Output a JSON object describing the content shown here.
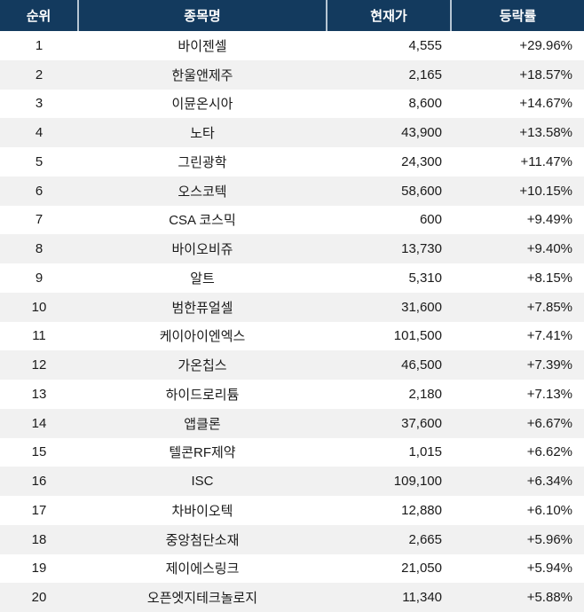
{
  "colors": {
    "header_bg": "#133a5e",
    "header_text": "#ffffff",
    "header_divider": "#b6c5d3",
    "row_bg": "#ffffff",
    "row_alt_bg": "#f1f1f1",
    "body_text": "#1a1a1a"
  },
  "table": {
    "columns": [
      {
        "key": "rank",
        "label": "순위"
      },
      {
        "key": "name",
        "label": "종목명"
      },
      {
        "key": "price",
        "label": "현재가"
      },
      {
        "key": "change",
        "label": "등락률"
      }
    ],
    "rows": [
      {
        "rank": "1",
        "name": "바이젠셀",
        "price": "4,555",
        "change": "+29.96%"
      },
      {
        "rank": "2",
        "name": "한울앤제주",
        "price": "2,165",
        "change": "+18.57%"
      },
      {
        "rank": "3",
        "name": "이뮨온시아",
        "price": "8,600",
        "change": "+14.67%"
      },
      {
        "rank": "4",
        "name": "노타",
        "price": "43,900",
        "change": "+13.58%"
      },
      {
        "rank": "5",
        "name": "그린광학",
        "price": "24,300",
        "change": "+11.47%"
      },
      {
        "rank": "6",
        "name": "오스코텍",
        "price": "58,600",
        "change": "+10.15%"
      },
      {
        "rank": "7",
        "name": "CSA 코스믹",
        "price": "600",
        "change": "+9.49%"
      },
      {
        "rank": "8",
        "name": "바이오비쥬",
        "price": "13,730",
        "change": "+9.40%"
      },
      {
        "rank": "9",
        "name": "알트",
        "price": "5,310",
        "change": "+8.15%"
      },
      {
        "rank": "10",
        "name": "범한퓨얼셀",
        "price": "31,600",
        "change": "+7.85%"
      },
      {
        "rank": "11",
        "name": "케이아이엔엑스",
        "price": "101,500",
        "change": "+7.41%"
      },
      {
        "rank": "12",
        "name": "가온칩스",
        "price": "46,500",
        "change": "+7.39%"
      },
      {
        "rank": "13",
        "name": "하이드로리튬",
        "price": "2,180",
        "change": "+7.13%"
      },
      {
        "rank": "14",
        "name": "앱클론",
        "price": "37,600",
        "change": "+6.67%"
      },
      {
        "rank": "15",
        "name": "텔콘RF제약",
        "price": "1,015",
        "change": "+6.62%"
      },
      {
        "rank": "16",
        "name": "ISC",
        "price": "109,100",
        "change": "+6.34%"
      },
      {
        "rank": "17",
        "name": "차바이오텍",
        "price": "12,880",
        "change": "+6.10%"
      },
      {
        "rank": "18",
        "name": "중앙첨단소재",
        "price": "2,665",
        "change": "+5.96%"
      },
      {
        "rank": "19",
        "name": "제이에스링크",
        "price": "21,050",
        "change": "+5.94%"
      },
      {
        "rank": "20",
        "name": "오픈엣지테크놀로지",
        "price": "11,340",
        "change": "+5.88%"
      }
    ]
  }
}
